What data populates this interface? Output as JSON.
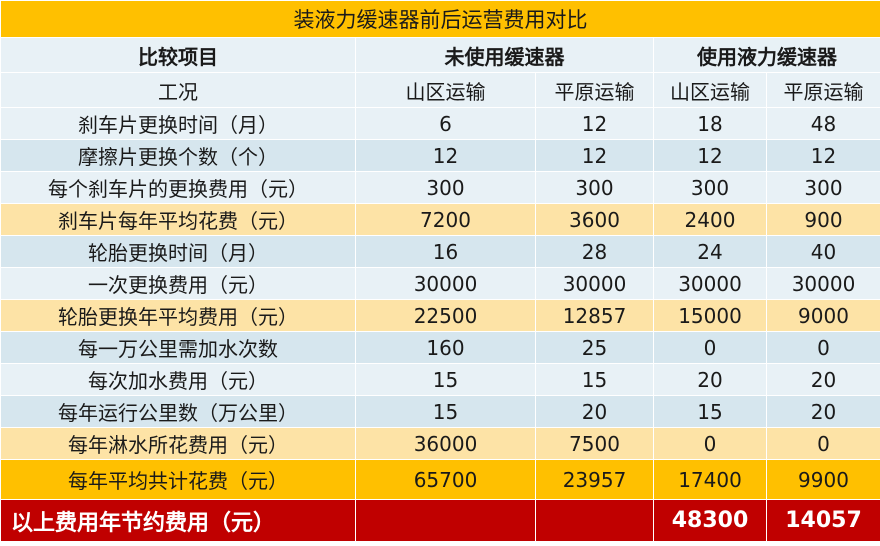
{
  "title": "装液力缓速器前后运营费用对比",
  "header": {
    "item_label": "比较项目",
    "group_without": "未使用缓速器",
    "group_with": "使用液力缓速器"
  },
  "conditions": {
    "label": "工况",
    "cols": [
      "山区运输",
      "平原运输",
      "山区运输",
      "平原运输"
    ]
  },
  "rows": [
    {
      "label": "刹车片更换时间（月）",
      "values": [
        "6",
        "12",
        "18",
        "48"
      ]
    },
    {
      "label": "摩擦片更换个数（个）",
      "values": [
        "12",
        "12",
        "12",
        "12"
      ]
    },
    {
      "label": "每个刹车片的更换费用（元）",
      "values": [
        "300",
        "300",
        "300",
        "300"
      ]
    },
    {
      "label": "刹车片每年平均花费（元）",
      "values": [
        "7200",
        "3600",
        "2400",
        "900"
      ]
    },
    {
      "label": "轮胎更换时间（月）",
      "values": [
        "16",
        "28",
        "24",
        "40"
      ]
    },
    {
      "label": "一次更换费用（元）",
      "values": [
        "30000",
        "30000",
        "30000",
        "30000"
      ]
    },
    {
      "label": "轮胎更换年平均费用（元）",
      "values": [
        "22500",
        "12857",
        "15000",
        "9000"
      ]
    },
    {
      "label": "每一万公里需加水次数",
      "values": [
        "160",
        "25",
        "0",
        "0"
      ]
    },
    {
      "label": "每次加水费用（元）",
      "values": [
        "15",
        "15",
        "20",
        "20"
      ]
    },
    {
      "label": "每年运行公里数（万公里）",
      "values": [
        "15",
        "20",
        "15",
        "20"
      ]
    },
    {
      "label": "每年淋水所花费用（元）",
      "values": [
        "36000",
        "7500",
        "0",
        "0"
      ]
    }
  ],
  "total": {
    "label": "每年平均共计花费（元）",
    "values": [
      "65700",
      "23957",
      "17400",
      "9900"
    ]
  },
  "saving": {
    "label": "以上费用年节约费用（元）",
    "values": [
      "",
      "",
      "48300",
      "14057"
    ]
  },
  "colors": {
    "title_bg": "#ffc000",
    "light_blue": "#e8f1f6",
    "blue": "#d6e6ee",
    "light_yellow": "#fde3a6",
    "orange": "#ffc000",
    "red": "#c00000"
  }
}
